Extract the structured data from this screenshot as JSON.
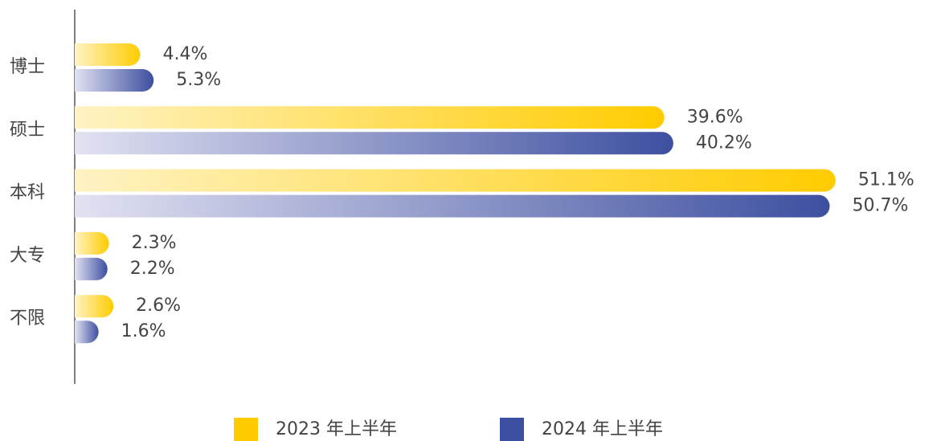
{
  "chart_data": {
    "type": "bar",
    "orientation": "horizontal",
    "categories": [
      "博士",
      "硕士",
      "本科",
      "大专",
      "不限"
    ],
    "series": [
      {
        "name": "2023 年上半年",
        "color": "#ffcc00",
        "values": [
          4.4,
          39.6,
          51.1,
          2.3,
          2.6
        ],
        "value_labels": [
          "4.4%",
          "39.6%",
          "51.1%",
          "2.3%",
          "2.6%"
        ]
      },
      {
        "name": "2024 年上半年",
        "color": "#3d4fa0",
        "values": [
          5.3,
          40.2,
          50.7,
          2.2,
          1.6
        ],
        "value_labels": [
          "5.3%",
          "40.2%",
          "50.7%",
          "2.2%",
          "1.6%"
        ]
      }
    ],
    "legend": "bottom"
  }
}
